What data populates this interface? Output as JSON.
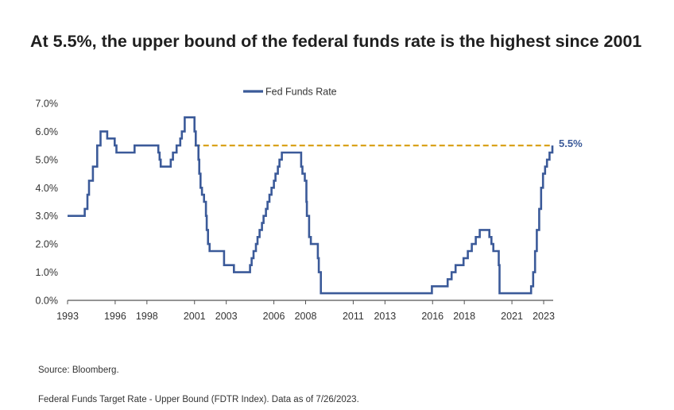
{
  "title": "At 5.5%, the upper bound of the federal funds rate is the highest since 2001",
  "source": "Source: Bloomberg.",
  "footnote": "Federal Funds Target Rate - Upper Bound (FDTR Index). Data as of 7/26/2023.",
  "colors": {
    "series": "#3b5a99",
    "reference": "#d9a21b",
    "axis": "#555555"
  },
  "chart_data": {
    "type": "line",
    "title": "At 5.5%, the upper bound of the federal funds rate is the highest since 2001",
    "xlabel": "",
    "ylabel": "",
    "xlim": [
      1993,
      2023.6
    ],
    "ylim": [
      0,
      7
    ],
    "x_ticks": [
      1993,
      1996,
      1998,
      2001,
      2003,
      2006,
      2008,
      2011,
      2013,
      2016,
      2018,
      2021,
      2023
    ],
    "y_ticks": [
      "0.0%",
      "1.0%",
      "2.0%",
      "3.0%",
      "4.0%",
      "5.0%",
      "6.0%",
      "7.0%"
    ],
    "grid": false,
    "legend": "top-center",
    "step": true,
    "series": [
      {
        "name": "Fed Funds Rate",
        "points": [
          [
            1993.0,
            3.0
          ],
          [
            1994.08,
            3.25
          ],
          [
            1994.25,
            3.75
          ],
          [
            1994.35,
            4.25
          ],
          [
            1994.6,
            4.75
          ],
          [
            1994.87,
            5.5
          ],
          [
            1995.08,
            6.0
          ],
          [
            1995.5,
            5.75
          ],
          [
            1995.97,
            5.5
          ],
          [
            1996.08,
            5.25
          ],
          [
            1997.22,
            5.5
          ],
          [
            1998.72,
            5.25
          ],
          [
            1998.8,
            5.0
          ],
          [
            1998.87,
            4.75
          ],
          [
            1999.5,
            5.0
          ],
          [
            1999.64,
            5.25
          ],
          [
            1999.87,
            5.5
          ],
          [
            2000.1,
            5.75
          ],
          [
            2000.2,
            6.0
          ],
          [
            2000.38,
            6.5
          ],
          [
            2001.0,
            6.0
          ],
          [
            2001.08,
            5.5
          ],
          [
            2001.25,
            5.0
          ],
          [
            2001.3,
            4.5
          ],
          [
            2001.38,
            4.0
          ],
          [
            2001.47,
            3.75
          ],
          [
            2001.6,
            3.5
          ],
          [
            2001.72,
            3.0
          ],
          [
            2001.77,
            2.5
          ],
          [
            2001.85,
            2.0
          ],
          [
            2001.95,
            1.75
          ],
          [
            2002.86,
            1.25
          ],
          [
            2003.48,
            1.0
          ],
          [
            2004.5,
            1.25
          ],
          [
            2004.6,
            1.5
          ],
          [
            2004.72,
            1.75
          ],
          [
            2004.87,
            2.0
          ],
          [
            2004.97,
            2.25
          ],
          [
            2005.1,
            2.5
          ],
          [
            2005.25,
            2.75
          ],
          [
            2005.35,
            3.0
          ],
          [
            2005.5,
            3.25
          ],
          [
            2005.6,
            3.5
          ],
          [
            2005.72,
            3.75
          ],
          [
            2005.85,
            4.0
          ],
          [
            2006.0,
            4.25
          ],
          [
            2006.1,
            4.5
          ],
          [
            2006.25,
            4.75
          ],
          [
            2006.35,
            5.0
          ],
          [
            2006.5,
            5.25
          ],
          [
            2007.72,
            4.75
          ],
          [
            2007.8,
            4.5
          ],
          [
            2007.95,
            4.25
          ],
          [
            2008.05,
            3.5
          ],
          [
            2008.08,
            3.0
          ],
          [
            2008.22,
            2.25
          ],
          [
            2008.33,
            2.0
          ],
          [
            2008.77,
            1.5
          ],
          [
            2008.83,
            1.0
          ],
          [
            2008.96,
            0.25
          ],
          [
            2015.96,
            0.5
          ],
          [
            2016.95,
            0.75
          ],
          [
            2017.2,
            1.0
          ],
          [
            2017.45,
            1.25
          ],
          [
            2017.95,
            1.5
          ],
          [
            2018.22,
            1.75
          ],
          [
            2018.47,
            2.0
          ],
          [
            2018.72,
            2.25
          ],
          [
            2018.97,
            2.5
          ],
          [
            2019.58,
            2.25
          ],
          [
            2019.71,
            2.0
          ],
          [
            2019.83,
            1.75
          ],
          [
            2020.17,
            1.25
          ],
          [
            2020.22,
            0.25
          ],
          [
            2022.21,
            0.5
          ],
          [
            2022.34,
            1.0
          ],
          [
            2022.46,
            1.75
          ],
          [
            2022.57,
            2.5
          ],
          [
            2022.72,
            3.25
          ],
          [
            2022.84,
            4.0
          ],
          [
            2022.96,
            4.5
          ],
          [
            2023.09,
            4.75
          ],
          [
            2023.21,
            5.0
          ],
          [
            2023.37,
            5.25
          ],
          [
            2023.55,
            5.5
          ]
        ]
      }
    ],
    "reference_line": {
      "y": 5.5,
      "x_start": 2001.0,
      "x_end": 2023.55,
      "style": "dashed"
    },
    "annotations": [
      {
        "text": "5.5%",
        "x": 2023.55,
        "y": 5.5
      }
    ]
  }
}
